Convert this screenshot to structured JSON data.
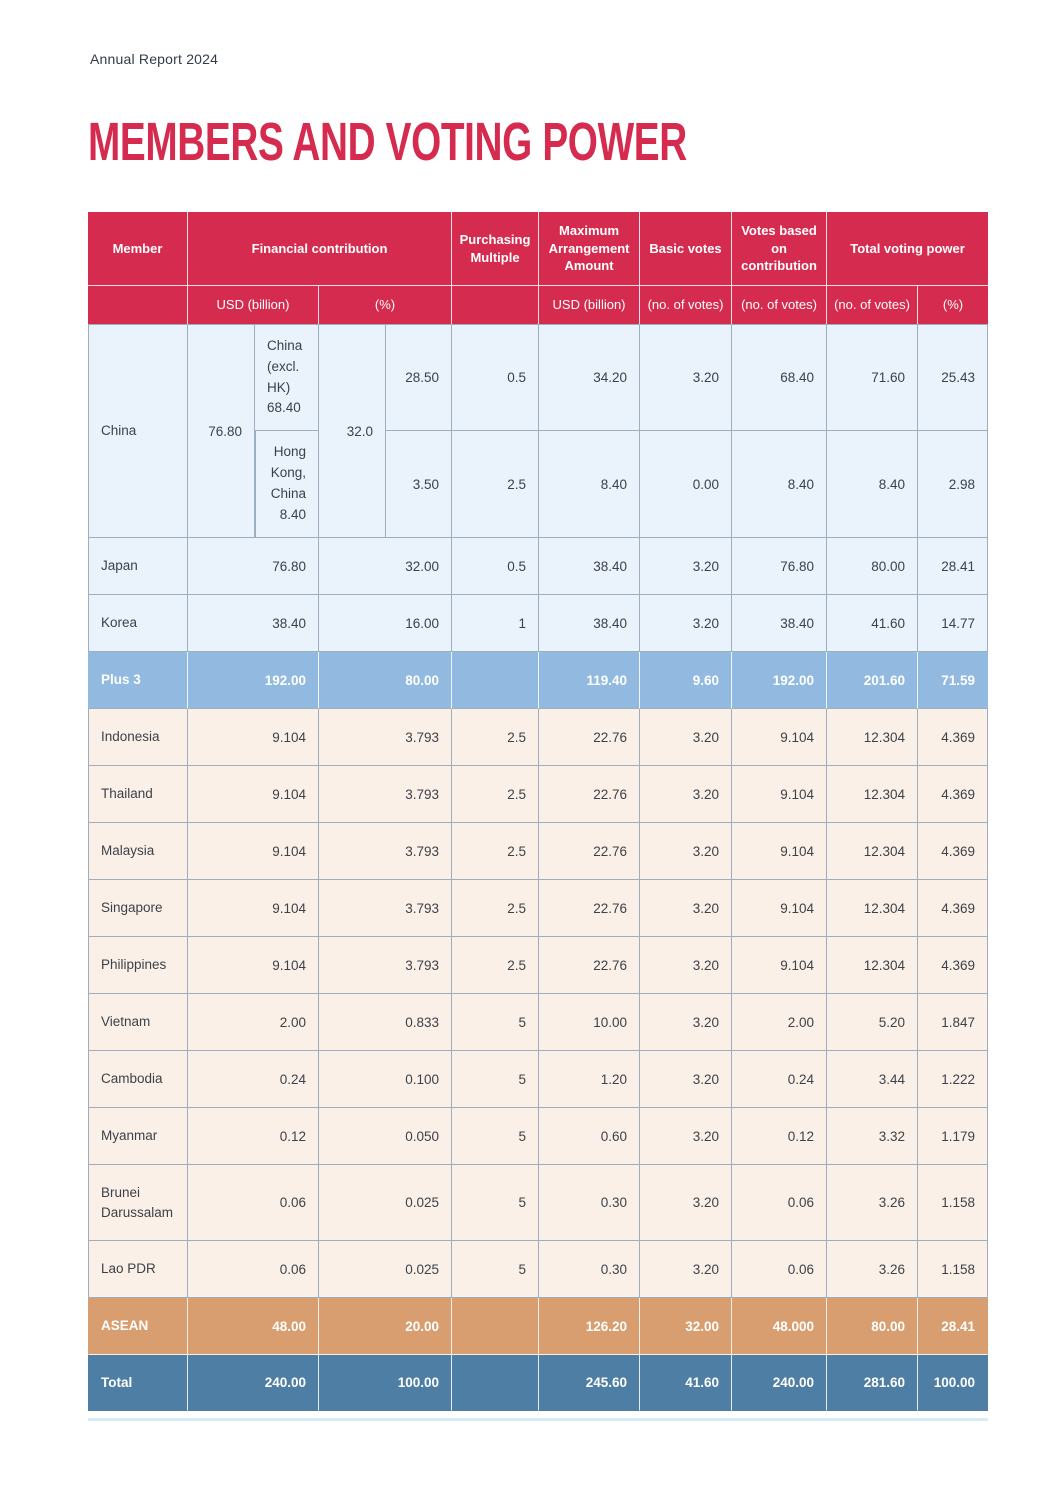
{
  "page": {
    "report_label": "Annual Report 2024",
    "title": "MEMBERS AND VOTING POWER"
  },
  "colors": {
    "title_red": "#D42B4E",
    "header_red": "#D42B4E",
    "plus3_member_blue": "#EAF2FB",
    "plus3_total_blue": "#92B9E0",
    "asean_member_peach": "#FAF0E8",
    "asean_total_orange": "#D89E6F",
    "grand_total_blue": "#4E7EA3",
    "grid_border": "#9DAFBE",
    "body_text": "#3D4148"
  },
  "table": {
    "header": {
      "member": "Member",
      "financial_contribution": "Financial contribution",
      "purchasing_multiple": "Purchasing Multiple",
      "maximum_arrangement_amount": "Maximum Arrangement Amount",
      "basic_votes": "Basic votes",
      "votes_based_on_contribution": "Votes based on contribution",
      "total_voting_power": "Total voting power"
    },
    "subheader": {
      "fc_usd_billion": "USD (billion)",
      "fc_percent": "(%)",
      "maa_usd_billion": "USD (billion)",
      "bv_votes": "(no. of votes)",
      "vbc_votes": "(no. of votes)",
      "tvp_votes": "(no. of votes)",
      "tvp_percent": "(%)"
    },
    "china": {
      "member": "China",
      "usd_total": "76.80",
      "pct_total": "32.0",
      "sub_rows": [
        {
          "label": "China\n(excl.\nHK)\n68.40",
          "cells": [
            "28.50",
            "0.5",
            "34.20",
            "3.20",
            "68.40",
            "71.60",
            "25.43"
          ]
        },
        {
          "label": "Hong\nKong,\nChina\n8.40",
          "cells": [
            "3.50",
            "2.5",
            "8.40",
            "0.00",
            "8.40",
            "8.40",
            "2.98"
          ]
        }
      ]
    },
    "rows": [
      {
        "member": "Japan",
        "group": "plus3_member",
        "cells": [
          "76.80",
          "32.00",
          "0.5",
          "38.40",
          "3.20",
          "76.80",
          "80.00",
          "28.41"
        ]
      },
      {
        "member": "Korea",
        "group": "plus3_member",
        "cells": [
          "38.40",
          "16.00",
          "1",
          "38.40",
          "3.20",
          "38.40",
          "41.60",
          "14.77"
        ]
      },
      {
        "member": "Plus 3",
        "group": "plus3_total",
        "cells": [
          "192.00",
          "80.00",
          "",
          "119.40",
          "9.60",
          "192.00",
          "201.60",
          "71.59"
        ]
      },
      {
        "member": "Indonesia",
        "group": "asean_member",
        "cells": [
          "9.104",
          "3.793",
          "2.5",
          "22.76",
          "3.20",
          "9.104",
          "12.304",
          "4.369"
        ]
      },
      {
        "member": "Thailand",
        "group": "asean_member",
        "cells": [
          "9.104",
          "3.793",
          "2.5",
          "22.76",
          "3.20",
          "9.104",
          "12.304",
          "4.369"
        ]
      },
      {
        "member": "Malaysia",
        "group": "asean_member",
        "cells": [
          "9.104",
          "3.793",
          "2.5",
          "22.76",
          "3.20",
          "9.104",
          "12.304",
          "4.369"
        ]
      },
      {
        "member": "Singapore",
        "group": "asean_member",
        "cells": [
          "9.104",
          "3.793",
          "2.5",
          "22.76",
          "3.20",
          "9.104",
          "12.304",
          "4.369"
        ]
      },
      {
        "member": "Philippines",
        "group": "asean_member",
        "cells": [
          "9.104",
          "3.793",
          "2.5",
          "22.76",
          "3.20",
          "9.104",
          "12.304",
          "4.369"
        ]
      },
      {
        "member": "Vietnam",
        "group": "asean_member",
        "cells": [
          "2.00",
          "0.833",
          "5",
          "10.00",
          "3.20",
          "2.00",
          "5.20",
          "1.847"
        ]
      },
      {
        "member": "Cambodia",
        "group": "asean_member",
        "cells": [
          "0.24",
          "0.100",
          "5",
          "1.20",
          "3.20",
          "0.24",
          "3.44",
          "1.222"
        ]
      },
      {
        "member": "Myanmar",
        "group": "asean_member",
        "cells": [
          "0.12",
          "0.050",
          "5",
          "0.60",
          "3.20",
          "0.12",
          "3.32",
          "1.179"
        ]
      },
      {
        "member": "Brunei Darussalam",
        "group": "asean_member",
        "tall": true,
        "cells": [
          "0.06",
          "0.025",
          "5",
          "0.30",
          "3.20",
          "0.06",
          "3.26",
          "1.158"
        ]
      },
      {
        "member": "Lao PDR",
        "group": "asean_member",
        "cells": [
          "0.06",
          "0.025",
          "5",
          "0.30",
          "3.20",
          "0.06",
          "3.26",
          "1.158"
        ]
      },
      {
        "member": "ASEAN",
        "group": "asean_total",
        "cells": [
          "48.00",
          "20.00",
          "",
          "126.20",
          "32.00",
          "48.000",
          "80.00",
          "28.41"
        ]
      },
      {
        "member": "Total",
        "group": "grand_total",
        "cells": [
          "240.00",
          "100.00",
          "",
          "245.60",
          "41.60",
          "240.00",
          "281.60",
          "100.00"
        ]
      }
    ]
  }
}
